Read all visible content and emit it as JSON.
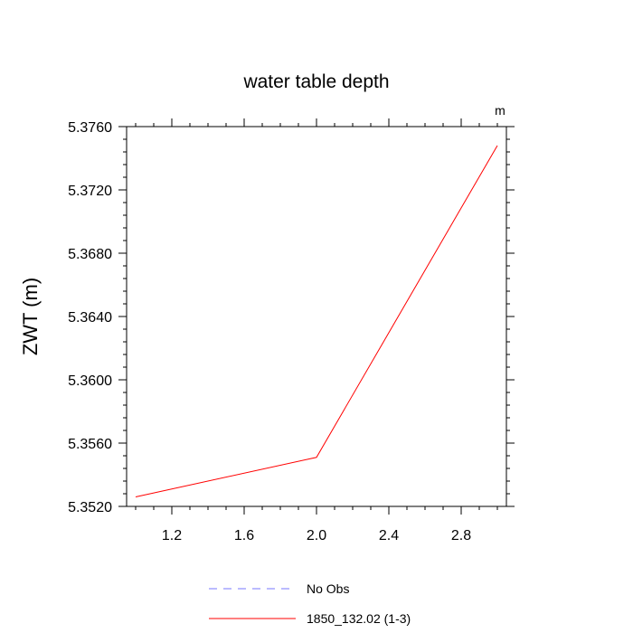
{
  "chart_data": {
    "type": "line",
    "title": "water table depth",
    "units_label": "m",
    "ylabel": "ZWT  (m)",
    "xlabel": "",
    "xlim": [
      0.95,
      3.05
    ],
    "ylim": [
      5.352,
      5.376
    ],
    "x_ticks": [
      1.2,
      1.6,
      2.0,
      2.4,
      2.8
    ],
    "x_tick_labels": [
      "1.2",
      "1.6",
      "2.0",
      "2.4",
      "2.8"
    ],
    "y_ticks": [
      5.352,
      5.356,
      5.36,
      5.364,
      5.368,
      5.372,
      5.376
    ],
    "y_tick_labels": [
      "5.3520",
      "5.3560",
      "5.3600",
      "5.3640",
      "5.3680",
      "5.3720",
      "5.3760"
    ],
    "grid": false,
    "legend_position": "bottom",
    "series": [
      {
        "name": "No Obs",
        "color": "#7777ff",
        "dash": "dashed",
        "x": [],
        "y": []
      },
      {
        "name": "1850_132.02 (1-3)",
        "color": "#ff0000",
        "dash": "solid",
        "x": [
          1,
          2,
          3
        ],
        "y": [
          5.3526,
          5.3551,
          5.3748
        ]
      }
    ]
  }
}
